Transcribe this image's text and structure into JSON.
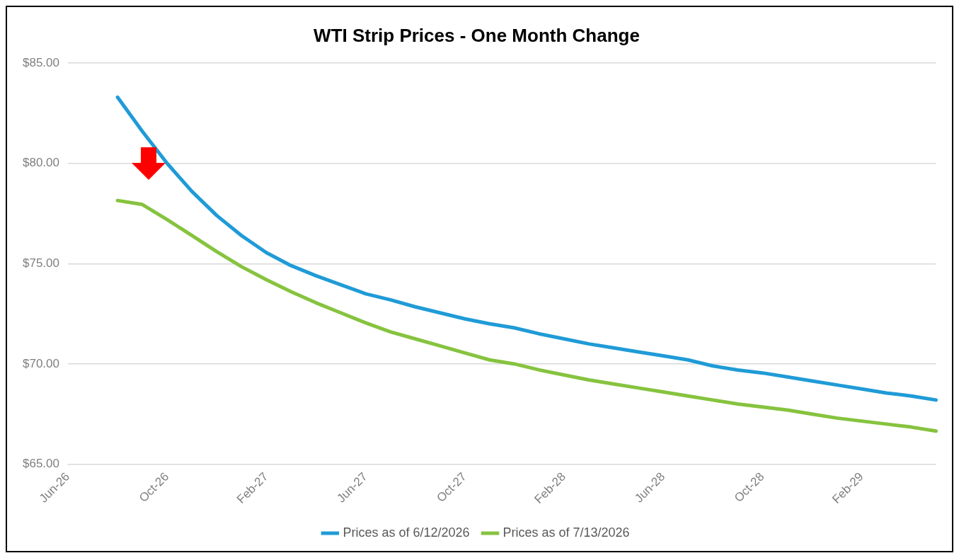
{
  "chart_data": {
    "type": "line",
    "title": "WTI Strip Prices - One Month Change",
    "categories": [
      "Jun-26",
      null,
      null,
      null,
      "Oct-26",
      null,
      null,
      null,
      "Feb-27",
      null,
      null,
      null,
      "Jun-27",
      null,
      null,
      null,
      "Oct-27",
      null,
      null,
      null,
      "Feb-28",
      null,
      null,
      null,
      "Jun-28",
      null,
      null,
      null,
      "Oct-28",
      null,
      null,
      null,
      "Feb-29",
      null,
      null,
      null
    ],
    "series": [
      {
        "name": "Prices as of 6/12/2026",
        "color": "#1f9bd7",
        "values": [
          null,
          null,
          83.3,
          81.6,
          80.0,
          78.6,
          77.4,
          76.4,
          75.55,
          74.9,
          74.4,
          73.95,
          73.5,
          73.2,
          72.85,
          72.55,
          72.25,
          72.0,
          71.8,
          71.5,
          71.25,
          71.0,
          70.8,
          70.6,
          70.4,
          70.2,
          69.9,
          69.7,
          69.55,
          69.35,
          69.15,
          68.95,
          68.75,
          68.55,
          68.4,
          68.2
        ]
      },
      {
        "name": "Prices as of 7/13/2026",
        "color": "#86c33f",
        "values": [
          null,
          null,
          78.15,
          77.95,
          77.2,
          76.4,
          75.6,
          74.85,
          74.2,
          73.6,
          73.05,
          72.55,
          72.05,
          71.6,
          71.25,
          70.9,
          70.55,
          70.2,
          70.0,
          69.7,
          69.45,
          69.2,
          69.0,
          68.8,
          68.6,
          68.4,
          68.2,
          68.0,
          67.85,
          67.7,
          67.5,
          67.3,
          67.15,
          67.0,
          66.85,
          66.65
        ]
      }
    ],
    "ylim": [
      65,
      85
    ],
    "yticks": [
      {
        "value": 65,
        "label": "$65.00"
      },
      {
        "value": 70,
        "label": "$70.00"
      },
      {
        "value": 75,
        "label": "$75.00"
      },
      {
        "value": 80,
        "label": "$80.00"
      },
      {
        "value": 85,
        "label": "$85.00"
      }
    ],
    "grid": "y",
    "legend": "bottom",
    "marker": "none",
    "line_style": "solid"
  }
}
